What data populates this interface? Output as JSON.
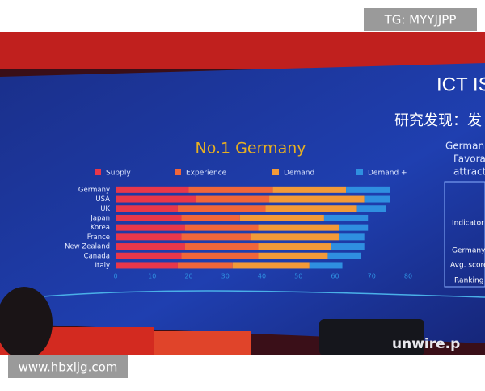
{
  "chart_data": {
    "type": "stacked-barh",
    "title": "No.1  Germany",
    "categories": [
      "Germany",
      "USA",
      "UK",
      "Japan",
      "Korea",
      "France",
      "New Zealand",
      "Canada",
      "Italy"
    ],
    "series": [
      {
        "name": "Supply",
        "color": "#e8374a",
        "values": [
          20,
          22,
          17,
          18,
          19,
          18,
          19,
          18,
          17
        ]
      },
      {
        "name": "Experience",
        "color": "#f0663a",
        "values": [
          23,
          20,
          24,
          16,
          20,
          19,
          20,
          21,
          15
        ]
      },
      {
        "name": "Demand",
        "color": "#f29a38",
        "values": [
          20,
          26,
          25,
          23,
          22,
          24,
          20,
          19,
          21
        ]
      },
      {
        "name": "Demand +",
        "color": "#2f8fe0",
        "values": [
          12,
          7,
          8,
          12,
          8,
          7,
          9,
          9,
          9
        ]
      }
    ],
    "xlim": [
      0,
      80
    ],
    "xticks": [
      0,
      10,
      20,
      30,
      40,
      50,
      60,
      70,
      80
    ],
    "grid": false
  },
  "overlays": {
    "watermark_top": "TG: MYYJJPP",
    "watermark_bottom": "www.hbxljg.com",
    "slide_title": "ICT IS W",
    "slide_subtitle": "研究发现：发",
    "bullets": [
      "German",
      "Favorab",
      "attracti"
    ],
    "table": [
      "Indicator",
      "Germany",
      "Avg. score",
      "Ranking"
    ],
    "logo": "unwire.p"
  }
}
